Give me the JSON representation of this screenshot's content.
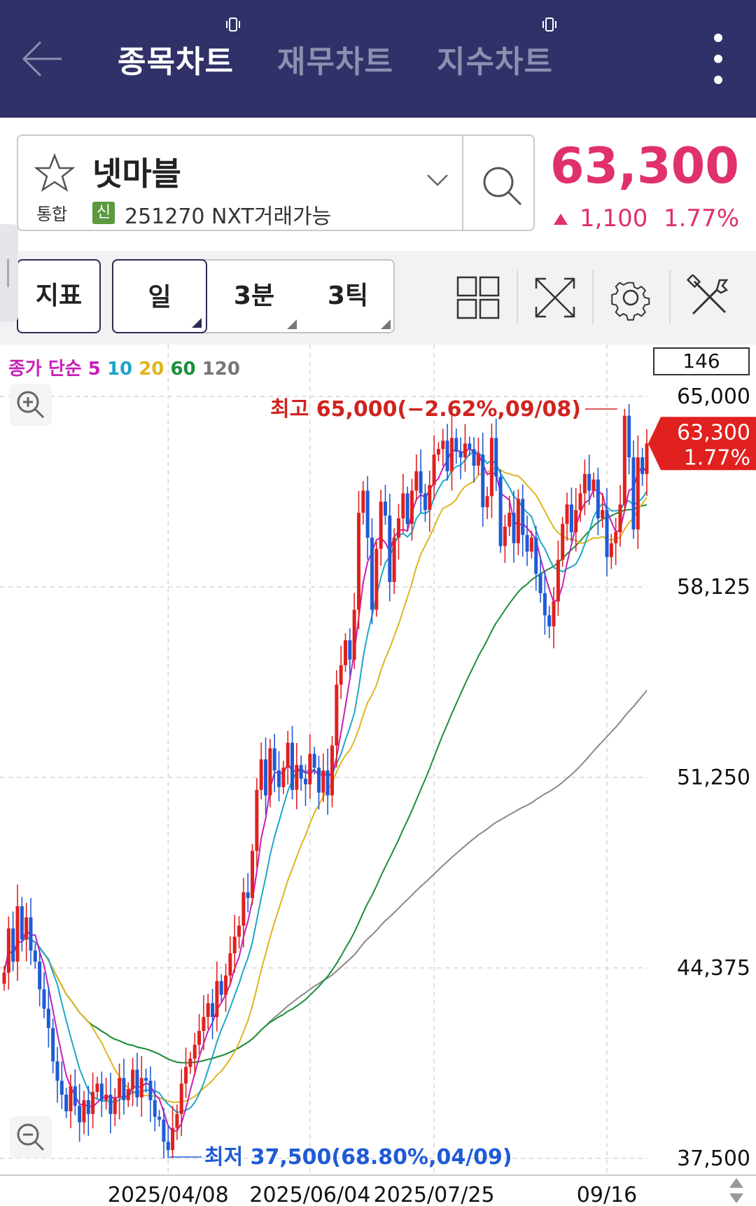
{
  "tabs": [
    {
      "label": "종목차트",
      "active": true
    },
    {
      "label": "재무차트",
      "active": false
    },
    {
      "label": "지수차트",
      "active": false
    }
  ],
  "stock": {
    "name": "넷마블",
    "market": "통합",
    "credit_badge": "신",
    "code_line": "251270 NXT거래가능",
    "price": "63,300",
    "change": "1,100",
    "change_pct": "1.77%",
    "price_color": "#e0306d"
  },
  "toolbar": {
    "indicator_label": "지표",
    "periods": [
      "일",
      "3분",
      "3틱"
    ],
    "selected_period": "일",
    "icons": [
      "grid-layout-icon",
      "fullscreen-icon",
      "settings-gear-icon",
      "tools-icon"
    ]
  },
  "chart_ui": {
    "ma_prefix": "종가 단순",
    "ma_periods": [
      {
        "label": "5",
        "color": "#c81fb9"
      },
      {
        "label": "10",
        "color": "#1fa6c8"
      },
      {
        "label": "20",
        "color": "#e0b41f"
      },
      {
        "label": "60",
        "color": "#1b8f3a"
      },
      {
        "label": "120",
        "color": "#777777"
      }
    ],
    "visible_count": "146",
    "high_label": "최고 65,000(−2.62%,09/08)",
    "low_label": "최저 37,500(68.80%,04/09)",
    "current_tag_price": "63,300",
    "current_tag_pct": "1.77%"
  },
  "chart_data": {
    "type": "candlestick",
    "y_ticks": [
      "65,000",
      "58,125",
      "51,250",
      "44,375",
      "37,500"
    ],
    "x_ticks": [
      "2025/04/08",
      "2025/06/04",
      "2025/07/25",
      "09/16"
    ],
    "ylim": [
      37500,
      65000
    ],
    "grid": true,
    "high": {
      "value": 65000,
      "date": "09/08",
      "pct_from_high": "-2.62%"
    },
    "low": {
      "value": 37500,
      "date": "04/09",
      "pct_from_low": "68.80%"
    },
    "last": {
      "value": 63300,
      "change": 1100,
      "change_pct": 1.77
    },
    "close_series": [
      44200,
      45800,
      44600,
      46600,
      45400,
      46200,
      45000,
      44600,
      43600,
      42900,
      42200,
      41000,
      40300,
      39800,
      39200,
      40100,
      39400,
      38800,
      39600,
      39100,
      39900,
      40200,
      39600,
      39800,
      39100,
      39700,
      40400,
      39600,
      40000,
      40700,
      39700,
      40400,
      40300,
      39600,
      39000,
      38900,
      38100,
      37800,
      38600,
      39100,
      40200,
      40800,
      41100,
      41600,
      42100,
      42600,
      43100,
      42600,
      43900,
      43400,
      44100,
      44900,
      45500,
      45900,
      47100,
      46900,
      48600,
      50800,
      51900,
      50600,
      52300,
      51500,
      50900,
      51600,
      52500,
      50800,
      51700,
      51200,
      51000,
      52100,
      51600,
      50700,
      51500,
      50600,
      52400,
      54600,
      55300,
      56200,
      55500,
      57300,
      60800,
      61600,
      59900,
      57300,
      59500,
      61200,
      60700,
      58300,
      59900,
      60600,
      61500,
      60400,
      61600,
      62300,
      61500,
      60900,
      61800,
      62900,
      63100,
      63400,
      62300,
      63500,
      63000,
      62800,
      63300,
      63100,
      62500,
      62900,
      61000,
      61400,
      63500,
      62100,
      59600,
      60300,
      60800,
      59700,
      61300,
      60000,
      59400,
      59900,
      58600,
      57900,
      57100,
      56700,
      57600,
      59100,
      60400,
      61100,
      60100,
      60900,
      61500,
      62200,
      61600,
      62000,
      60600,
      60900,
      59200,
      59700,
      60100,
      61100,
      64300,
      62800,
      60200,
      62800,
      62200,
      63300
    ]
  }
}
